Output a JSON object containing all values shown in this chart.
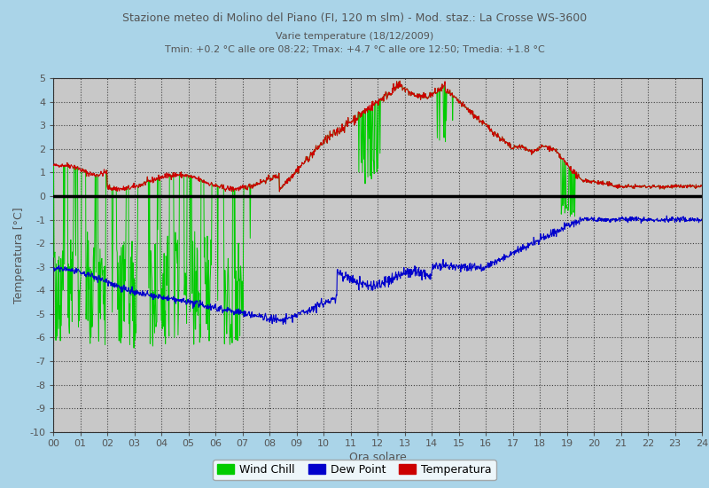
{
  "title1": "Stazione meteo di Molino del Piano (FI, 120 m slm) - Mod. staz.: La Crosse WS-3600",
  "title2": "Varie temperature (18/12/2009)",
  "title3": "Tmin: +0.2 °C alle ore 08:22; Tmax: +4.7 °C alle ore 12:50; Tmedia: +1.8 °C",
  "xlabel": "Ora solare",
  "ylabel": "Temperatura [°C]",
  "xlim": [
    0,
    24
  ],
  "ylim": [
    -10,
    5
  ],
  "yticks": [
    -10,
    -9,
    -8,
    -7,
    -6,
    -5,
    -4,
    -3,
    -2,
    -1,
    0,
    1,
    2,
    3,
    4,
    5
  ],
  "xticks": [
    0,
    1,
    2,
    3,
    4,
    5,
    6,
    7,
    8,
    9,
    10,
    11,
    12,
    13,
    14,
    15,
    16,
    17,
    18,
    19,
    20,
    21,
    22,
    23,
    24
  ],
  "bg_color": "#aad4e8",
  "plot_bg_color": "#c8c8c8",
  "temp_color": "#cc0000",
  "dew_color": "#0000cc",
  "wind_color": "#00cc00",
  "zero_line_color": "#000000",
  "title_color": "#555555",
  "legend_temp": "Temperatura",
  "legend_dew": "Dew Point",
  "legend_wind": "Wind Chill"
}
